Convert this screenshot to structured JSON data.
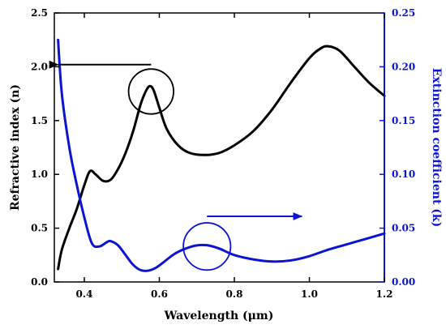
{
  "chart_data": {
    "type": "line",
    "xlabel": "Wavelength (μm)",
    "ylabel_left": "Refractive index (n)",
    "ylabel_right": "Extinction coefficient (k)",
    "xlim": [
      0.32,
      1.2
    ],
    "ylim_left": [
      0.0,
      2.5
    ],
    "ylim_right": [
      0.0,
      0.25
    ],
    "xticks": [
      "0.4",
      "0.6",
      "0.8",
      "1.0",
      "1.2"
    ],
    "yticks_left": [
      "0.0",
      "0.5",
      "1.0",
      "1.5",
      "2.0",
      "2.5"
    ],
    "yticks_right": [
      "0.00",
      "0.05",
      "0.10",
      "0.15",
      "0.20",
      "0.25"
    ],
    "grid": false,
    "colors": {
      "n": "#000000",
      "k": "#0a14d2"
    },
    "series": [
      {
        "axis": "left",
        "x": [
          0.33,
          0.34,
          0.36,
          0.38,
          0.4,
          0.415,
          0.43,
          0.45,
          0.47,
          0.49,
          0.51,
          0.53,
          0.55,
          0.565,
          0.575,
          0.585,
          0.6,
          0.62,
          0.65,
          0.68,
          0.72,
          0.76,
          0.8,
          0.85,
          0.9,
          0.95,
          1.0,
          1.03,
          1.05,
          1.08,
          1.12,
          1.16,
          1.2
        ],
        "y": [
          0.12,
          0.3,
          0.5,
          0.68,
          0.9,
          1.03,
          1.0,
          0.94,
          0.95,
          1.05,
          1.2,
          1.4,
          1.65,
          1.78,
          1.82,
          1.78,
          1.62,
          1.42,
          1.27,
          1.2,
          1.18,
          1.2,
          1.27,
          1.4,
          1.6,
          1.85,
          2.08,
          2.17,
          2.19,
          2.15,
          2.0,
          1.85,
          1.73
        ]
      },
      {
        "axis": "right",
        "x": [
          0.33,
          0.34,
          0.36,
          0.38,
          0.4,
          0.42,
          0.44,
          0.46,
          0.47,
          0.49,
          0.51,
          0.53,
          0.55,
          0.57,
          0.59,
          0.61,
          0.64,
          0.67,
          0.7,
          0.73,
          0.76,
          0.8,
          0.85,
          0.9,
          0.95,
          1.0,
          1.05,
          1.1,
          1.15,
          1.2
        ],
        "y": [
          0.225,
          0.175,
          0.125,
          0.09,
          0.06,
          0.036,
          0.033,
          0.037,
          0.038,
          0.034,
          0.025,
          0.016,
          0.011,
          0.0105,
          0.013,
          0.018,
          0.026,
          0.031,
          0.034,
          0.034,
          0.031,
          0.025,
          0.021,
          0.019,
          0.02,
          0.024,
          0.03,
          0.035,
          0.04,
          0.045
        ]
      }
    ],
    "annotations": [
      {
        "type": "circle",
        "axis": "left",
        "cx": 0.578,
        "cy": 1.77,
        "r_x": 0.06,
        "color": "#000000"
      },
      {
        "type": "arrow",
        "axis": "left",
        "from": [
          0.578,
          2.02
        ],
        "to": [
          0.33,
          2.02
        ],
        "color": "#000000"
      },
      {
        "type": "circle",
        "axis": "right",
        "cx": 0.727,
        "cy": 0.033,
        "r_x": 0.063,
        "color": "#0a14d2"
      },
      {
        "type": "arrow",
        "axis": "right",
        "from": [
          0.727,
          0.061
        ],
        "to": [
          0.98,
          0.061
        ],
        "color": "#0a14d2"
      }
    ]
  }
}
